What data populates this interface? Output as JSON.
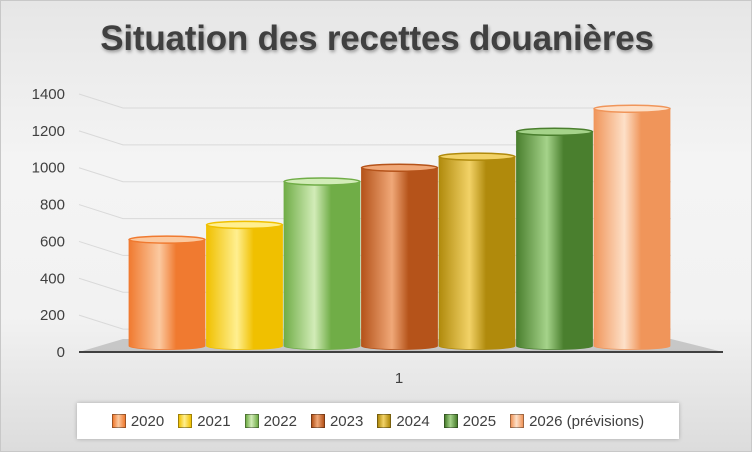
{
  "chart_data": {
    "type": "bar",
    "title": "Situation des recettes douanières",
    "categories": [
      "1"
    ],
    "series": [
      {
        "name": "2020",
        "values": [
          610
        ],
        "color": "#f07a30",
        "light": "#fbc9a0"
      },
      {
        "name": "2021",
        "values": [
          690
        ],
        "color": "#f0c000",
        "light": "#ffef90"
      },
      {
        "name": "2022",
        "values": [
          925
        ],
        "color": "#70ad47",
        "light": "#d2ecb8"
      },
      {
        "name": "2023",
        "values": [
          1000
        ],
        "color": "#b5531a",
        "light": "#f0a878"
      },
      {
        "name": "2024",
        "values": [
          1060
        ],
        "color": "#b08a0c",
        "light": "#f2d267"
      },
      {
        "name": "2025",
        "values": [
          1195
        ],
        "color": "#4a7f2e",
        "light": "#a5d38a"
      },
      {
        "name": "2026 (prévisions)",
        "values": [
          1320
        ],
        "color": "#f0955a",
        "light": "#fde0c8"
      }
    ],
    "ylim": [
      0,
      1400
    ],
    "yticks": [
      0,
      200,
      400,
      600,
      800,
      1000,
      1200,
      1400
    ],
    "grid": true,
    "legend_position": "bottom",
    "three_d": true
  }
}
